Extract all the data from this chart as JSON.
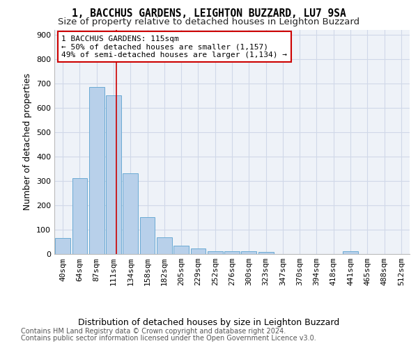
{
  "title": "1, BACCHUS GARDENS, LEIGHTON BUZZARD, LU7 9SA",
  "subtitle": "Size of property relative to detached houses in Leighton Buzzard",
  "xlabel": "Distribution of detached houses by size in Leighton Buzzard",
  "ylabel": "Number of detached properties",
  "footer1": "Contains HM Land Registry data © Crown copyright and database right 2024.",
  "footer2": "Contains public sector information licensed under the Open Government Licence v3.0.",
  "bar_labels": [
    "40sqm",
    "64sqm",
    "87sqm",
    "111sqm",
    "134sqm",
    "158sqm",
    "182sqm",
    "205sqm",
    "229sqm",
    "252sqm",
    "276sqm",
    "300sqm",
    "323sqm",
    "347sqm",
    "370sqm",
    "394sqm",
    "418sqm",
    "441sqm",
    "465sqm",
    "488sqm",
    "512sqm"
  ],
  "bar_values": [
    65,
    310,
    685,
    650,
    330,
    150,
    68,
    35,
    22,
    12,
    12,
    10,
    8,
    0,
    0,
    0,
    0,
    12,
    0,
    0,
    0
  ],
  "bar_color": "#b8d0ea",
  "bar_edge_color": "#6aaad4",
  "grid_color": "#d0d8e8",
  "annotation_text": "1 BACCHUS GARDENS: 115sqm\n← 50% of detached houses are smaller (1,157)\n49% of semi-detached houses are larger (1,134) →",
  "annotation_box_color": "white",
  "annotation_border_color": "#cc0000",
  "vline_color": "#cc0000",
  "vline_x": 3.15,
  "ylim": [
    0,
    920
  ],
  "yticks": [
    0,
    100,
    200,
    300,
    400,
    500,
    600,
    700,
    800,
    900
  ],
  "background_color": "#eef2f8",
  "title_fontsize": 10.5,
  "subtitle_fontsize": 9.5,
  "axis_label_fontsize": 9,
  "tick_fontsize": 8,
  "annotation_fontsize": 8,
  "footer_fontsize": 7
}
